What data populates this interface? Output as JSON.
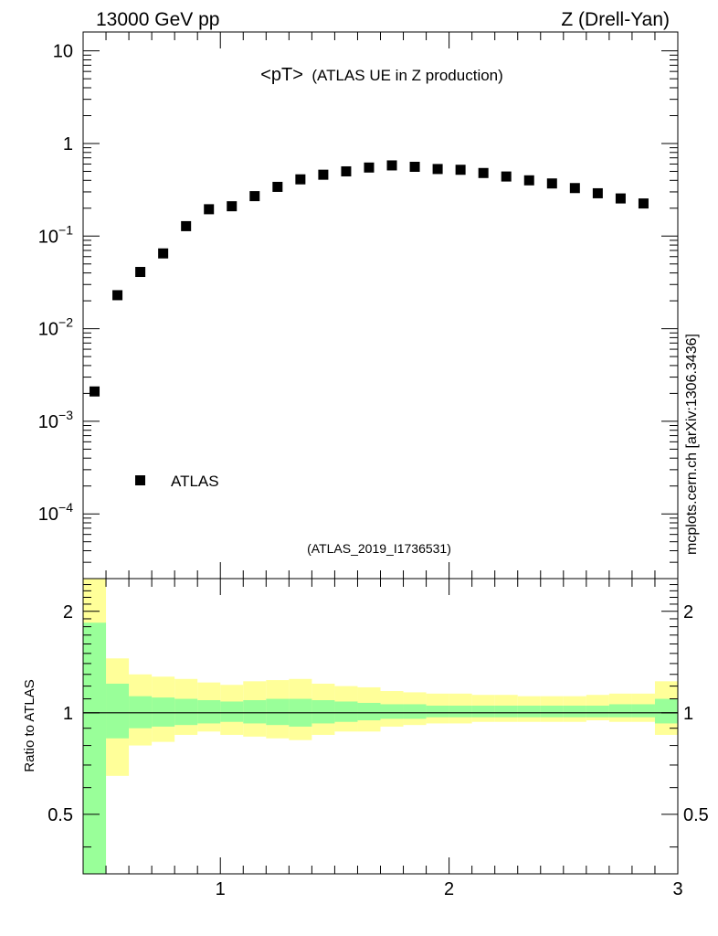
{
  "header": {
    "left": "13000 GeV pp",
    "right": "Z (Drell-Yan)"
  },
  "side_label": "mcplots.cern.ch [arXiv:1306.3436]",
  "colors": {
    "data_marker": "#000000",
    "band_inner": "#99ff99",
    "band_outer": "#ffff99",
    "ref_tag": "#999999"
  },
  "chart_data": [
    {
      "type": "scatter",
      "title_main": "<pT>",
      "title_sub": "(ATLAS UE in Z production)",
      "ref_tag": "(ATLAS_2019_I1736531)",
      "legend": [
        "ATLAS"
      ],
      "legend_position": "bottom-left",
      "xlim": [
        0.4,
        3.0
      ],
      "ylim": [
        2e-05,
        16
      ],
      "yscale": "log",
      "yticks": [
        {
          "v": 0.0001,
          "mant": "10",
          "exp": "−4"
        },
        {
          "v": 0.001,
          "mant": "10",
          "exp": "−3"
        },
        {
          "v": 0.01,
          "mant": "10",
          "exp": "−2"
        },
        {
          "v": 0.1,
          "mant": "10",
          "exp": "−1"
        },
        {
          "v": 1,
          "mant": "1",
          "exp": ""
        },
        {
          "v": 10,
          "mant": "10",
          "exp": ""
        }
      ],
      "series": [
        {
          "name": "ATLAS",
          "x": [
            0.45,
            0.55,
            0.65,
            0.75,
            0.85,
            0.95,
            1.05,
            1.15,
            1.25,
            1.35,
            1.45,
            1.55,
            1.65,
            1.75,
            1.85,
            1.95,
            2.05,
            2.15,
            2.25,
            2.35,
            2.45,
            2.55,
            2.65,
            2.75,
            2.85
          ],
          "y": [
            0.0021,
            0.023,
            0.041,
            0.065,
            0.128,
            0.195,
            0.21,
            0.27,
            0.34,
            0.41,
            0.46,
            0.5,
            0.55,
            0.58,
            0.56,
            0.53,
            0.52,
            0.48,
            0.44,
            0.4,
            0.37,
            0.33,
            0.29,
            0.255,
            0.225
          ]
        }
      ]
    },
    {
      "type": "area",
      "ylabel": "Ratio to ATLAS",
      "xlim": [
        0.4,
        3.0
      ],
      "ylim": [
        0.333,
        2.5
      ],
      "yscale": "log",
      "yticks": [
        0.5,
        1,
        2
      ],
      "ytick_labels": [
        "0.5",
        "1",
        "2"
      ],
      "xticks": [
        1,
        2,
        3
      ],
      "xtick_labels": [
        "1",
        "2",
        "3"
      ],
      "bin_edges": [
        0.4,
        0.5,
        0.6,
        0.7,
        0.8,
        0.9,
        1.0,
        1.1,
        1.2,
        1.3,
        1.4,
        1.5,
        1.6,
        1.7,
        1.8,
        1.9,
        2.0,
        2.1,
        2.2,
        2.3,
        2.4,
        2.5,
        2.6,
        2.7,
        2.8,
        2.9,
        3.0
      ],
      "bands": [
        {
          "name": "total uncertainty",
          "lo": [
            0.25,
            0.65,
            0.8,
            0.82,
            0.86,
            0.88,
            0.86,
            0.85,
            0.84,
            0.83,
            0.86,
            0.88,
            0.88,
            0.91,
            0.92,
            0.93,
            0.93,
            0.94,
            0.94,
            0.94,
            0.94,
            0.94,
            0.95,
            0.94,
            0.94,
            0.86
          ],
          "hi": [
            2.6,
            1.45,
            1.3,
            1.28,
            1.26,
            1.23,
            1.21,
            1.24,
            1.25,
            1.26,
            1.22,
            1.2,
            1.19,
            1.16,
            1.15,
            1.14,
            1.14,
            1.13,
            1.13,
            1.12,
            1.12,
            1.12,
            1.13,
            1.14,
            1.14,
            1.24
          ]
        },
        {
          "name": "statistical uncertainty",
          "lo": [
            0.25,
            0.84,
            0.9,
            0.91,
            0.92,
            0.93,
            0.94,
            0.93,
            0.92,
            0.91,
            0.93,
            0.94,
            0.95,
            0.96,
            0.96,
            0.97,
            0.97,
            0.97,
            0.97,
            0.97,
            0.97,
            0.97,
            0.97,
            0.97,
            0.97,
            0.93
          ],
          "hi": [
            1.85,
            1.22,
            1.12,
            1.11,
            1.1,
            1.09,
            1.08,
            1.09,
            1.1,
            1.1,
            1.09,
            1.08,
            1.07,
            1.06,
            1.06,
            1.05,
            1.05,
            1.05,
            1.05,
            1.05,
            1.05,
            1.05,
            1.05,
            1.06,
            1.06,
            1.1
          ]
        }
      ]
    }
  ]
}
